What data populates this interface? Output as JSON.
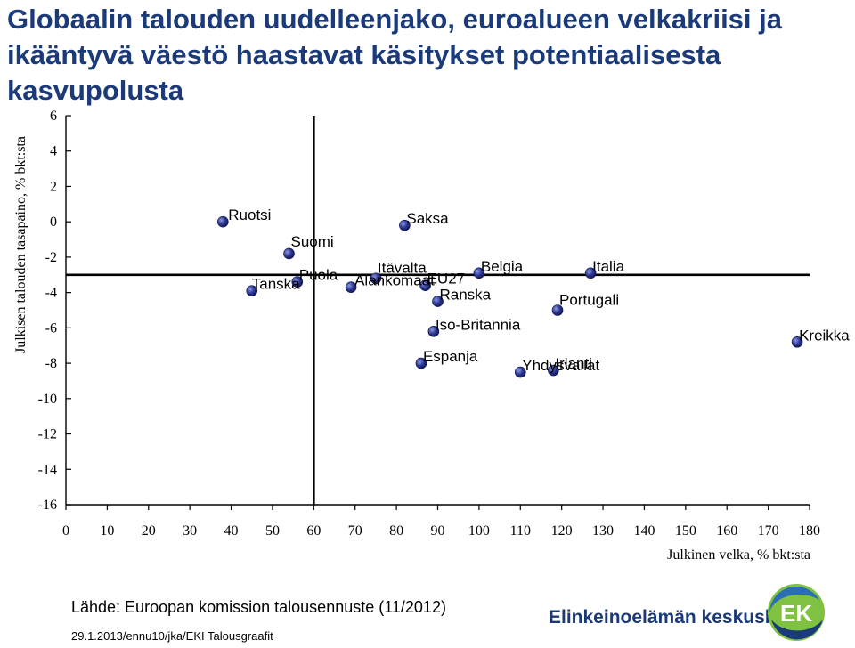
{
  "title": "Globaalin talouden uudelleenjako, euroalueen velkakriisi ja ikääntyvä väestö haastavat käsitykset potentiaalisesta kasvupolusta",
  "source": "Lähde: Euroopan komission talousennuste (11/2012)",
  "footer": "29.1.2013/ennu10/jka/EKI Talousgraafit",
  "logo": {
    "text": "Elinkeinoelämän keskusliitto",
    "mark": "EK",
    "colors": {
      "navy": "#1a3a7a",
      "green": "#7fc241",
      "blue": "#2a6fb5"
    }
  },
  "chart_data": {
    "type": "scatter",
    "title": "",
    "xlabel": "Julkinen velka, % bkt:sta",
    "ylabel": "Julkisen talouden tasapaino, % bkt:sta",
    "xlim": [
      0,
      180
    ],
    "ylim": [
      -16,
      6
    ],
    "xticks": [
      0,
      10,
      20,
      30,
      40,
      50,
      60,
      70,
      80,
      90,
      100,
      110,
      120,
      130,
      140,
      150,
      160,
      170,
      180
    ],
    "yticks": [
      6,
      4,
      2,
      0,
      -2,
      -4,
      -6,
      -8,
      -10,
      -12,
      -14,
      -16
    ],
    "reference_lines": {
      "x": 60,
      "y": -3
    },
    "marker_color": "#1f2a78",
    "grid": false,
    "points": [
      {
        "label": "Ruotsi",
        "x": 38,
        "y": 0
      },
      {
        "label": "Saksa",
        "x": 82,
        "y": -0.2
      },
      {
        "label": "Suomi",
        "x": 54,
        "y": -1.8
      },
      {
        "label": "Tanska",
        "x": 45,
        "y": -3.9
      },
      {
        "label": "Puola",
        "x": 56,
        "y": -3.4
      },
      {
        "label": "Itävalta",
        "x": 75,
        "y": -3.2
      },
      {
        "label": "Alankomaat",
        "x": 69,
        "y": -3.7
      },
      {
        "label": "EU27",
        "x": 87,
        "y": -3.6
      },
      {
        "label": "Belgia",
        "x": 100,
        "y": -2.9
      },
      {
        "label": "Italia",
        "x": 127,
        "y": -2.9
      },
      {
        "label": "Ranska",
        "x": 90,
        "y": -4.5
      },
      {
        "label": "Portugali",
        "x": 119,
        "y": -5
      },
      {
        "label": "Iso-Britannia",
        "x": 89,
        "y": -6.2
      },
      {
        "label": "Kreikka",
        "x": 177,
        "y": -6.8
      },
      {
        "label": "Espanja",
        "x": 86,
        "y": -8
      },
      {
        "label": "Yhdysvallat",
        "x": 110,
        "y": -8.5
      },
      {
        "label": "Irlanti",
        "x": 118,
        "y": -8.4
      }
    ]
  }
}
